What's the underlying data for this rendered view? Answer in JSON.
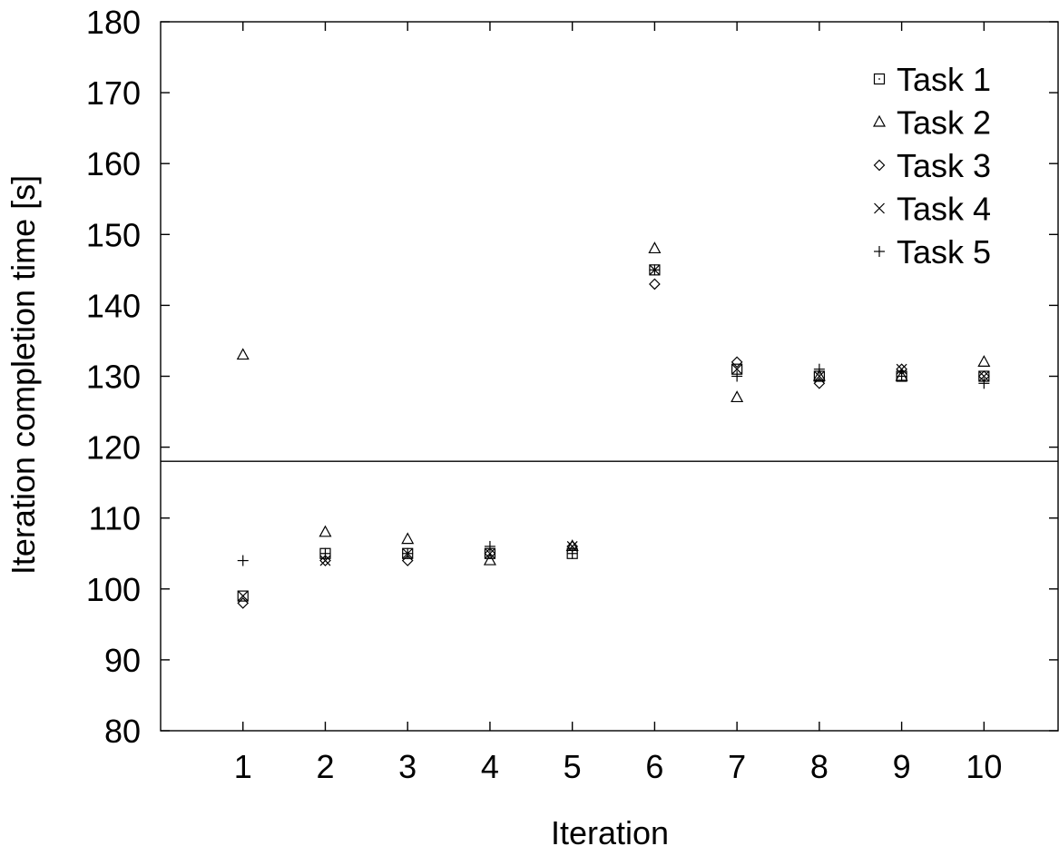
{
  "chart_data": {
    "type": "scatter",
    "title": "",
    "xlabel": "Iteration",
    "ylabel": "Iteration completion time [s]",
    "xlim": [
      0,
      10.9
    ],
    "ylim": [
      80,
      180
    ],
    "x_ticks": [
      1,
      2,
      3,
      4,
      5,
      6,
      7,
      8,
      9,
      10
    ],
    "y_ticks": [
      80,
      90,
      100,
      110,
      120,
      130,
      140,
      150,
      160,
      170,
      180
    ],
    "grid": false,
    "legend_position": "top-right",
    "reference_line": {
      "y": 118
    },
    "series": [
      {
        "name": "Task 1",
        "marker": "square-dot",
        "x": [
          1,
          2,
          3,
          4,
          5,
          6,
          7,
          8,
          9,
          10
        ],
        "y": [
          99,
          105,
          105,
          105,
          105,
          145,
          131,
          130,
          130,
          130
        ]
      },
      {
        "name": "Task 2",
        "marker": "triangle",
        "x": [
          1,
          2,
          3,
          4,
          5,
          6,
          7,
          8,
          9,
          10
        ],
        "y": [
          133,
          108,
          107,
          104,
          106,
          148,
          127,
          130,
          130,
          132
        ]
      },
      {
        "name": "Task 3",
        "marker": "diamond",
        "x": [
          1,
          2,
          3,
          4,
          5,
          6,
          7,
          8,
          9,
          10
        ],
        "y": [
          98,
          104,
          104,
          105,
          106,
          143,
          132,
          129,
          131,
          130
        ]
      },
      {
        "name": "Task 4",
        "marker": "x",
        "x": [
          1,
          2,
          3,
          4,
          5,
          6,
          7,
          8,
          9,
          10
        ],
        "y": [
          99,
          104,
          105,
          105,
          106,
          145,
          131,
          130,
          131,
          130
        ]
      },
      {
        "name": "Task 5",
        "marker": "plus",
        "x": [
          1,
          2,
          3,
          4,
          5,
          6,
          7,
          8,
          9,
          10
        ],
        "y": [
          104,
          105,
          105,
          106,
          105,
          145,
          130,
          131,
          130,
          129
        ]
      }
    ]
  }
}
